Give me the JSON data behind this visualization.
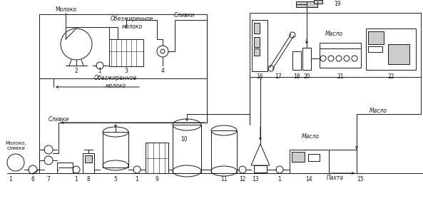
{
  "bg_color": "#ffffff",
  "fig_width": 5.93,
  "fig_height": 2.82,
  "dpi": 100,
  "lc": "#1a1a1a",
  "tc": "#1a1a1a",
  "fs": 5.5,
  "fn": 5.5,
  "lw": 0.7,
  "labels": {
    "moloko_top": "Молоко",
    "obezzhirennoe_top": "Обезжиренное\nмолоко",
    "slivki_top": "Сливки",
    "obezzhirennoe_bottom": "Обезжиренное\nмолоко",
    "maslo_tr": "Масло",
    "maslo_mid": "Масло",
    "maslo_bot": "Масло",
    "pahta": "Пахта",
    "moloko_slivki": "Молоко,\nсливки",
    "slivki_bot": "Сливки",
    "n1": "1",
    "n2": "2",
    "n3": "3",
    "n4": "4",
    "n5": "5",
    "n6": "6",
    "n7": "7",
    "n8": "8",
    "n9": "9",
    "n10": "10",
    "n11": "11",
    "n12": "12",
    "n13": "13",
    "n14": "14",
    "n15": "15",
    "n16": "16",
    "n17": "17",
    "n18": "18",
    "n19": "19",
    "n20": "20",
    "n21": "21",
    "n22": "22"
  }
}
